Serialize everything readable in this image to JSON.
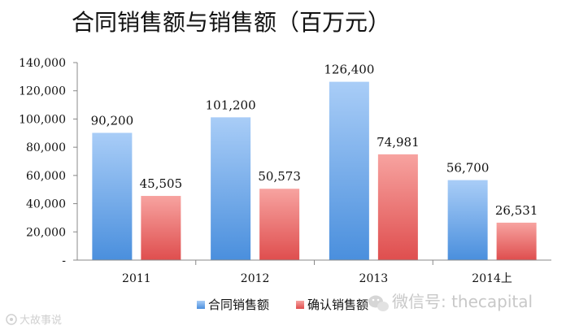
{
  "chart_data": {
    "type": "bar",
    "title": "合同销售额与销售额（百万元）",
    "categories": [
      "2011",
      "2012",
      "2013",
      "2014上"
    ],
    "series": [
      {
        "name": "合同销售额",
        "values": [
          90200,
          101200,
          126400,
          56700
        ],
        "labels": [
          "90,200",
          "101,200",
          "126,400",
          "56,700"
        ],
        "color": "#6aa8ea"
      },
      {
        "name": "确认销售额",
        "values": [
          45505,
          50573,
          74981,
          26531
        ],
        "labels": [
          "45,505",
          "50,573",
          "74,981",
          "26,531"
        ],
        "color": "#e85b5b"
      }
    ],
    "ylim": [
      0,
      140000
    ],
    "yticks": [
      0,
      20000,
      40000,
      60000,
      80000,
      100000,
      120000,
      140000
    ],
    "ytick_labels": [
      "-",
      "20,000",
      "40,000",
      "60,000",
      "80,000",
      "100,000",
      "120,000",
      "140,000"
    ],
    "grid": false,
    "legend": "bottom-center",
    "xlabel": "",
    "ylabel": ""
  },
  "watermark": {
    "right_text": "微信号: thecapital",
    "right_icon": "wechat-icon",
    "left_text": "大故事说",
    "left_icon": "weibo-icon"
  }
}
